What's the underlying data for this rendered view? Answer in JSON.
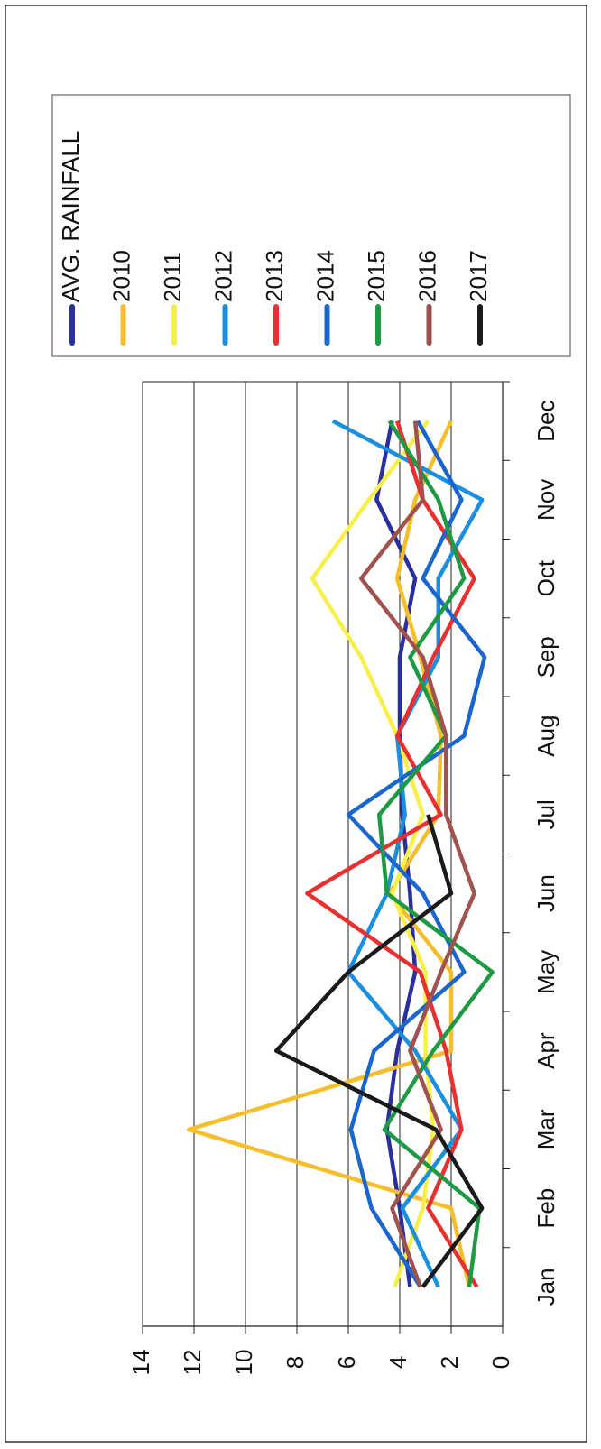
{
  "chart_data": {
    "type": "line",
    "categories": [
      "Jan",
      "Feb",
      "Mar",
      "Apr",
      "May",
      "Jun",
      "Jul",
      "Aug",
      "Sep",
      "Oct",
      "Nov",
      "Dec"
    ],
    "ylim": [
      0,
      14
    ],
    "yticks": [
      0,
      2,
      4,
      6,
      8,
      10,
      12,
      14
    ],
    "grid": true,
    "series": [
      {
        "name": "AVG. RAINFALL",
        "color": "#2b2f9e",
        "values": [
          3.6,
          4.0,
          4.5,
          4.1,
          3.4,
          3.6,
          3.9,
          4.0,
          4.0,
          3.4,
          4.9,
          4.3
        ]
      },
      {
        "name": "2010",
        "color": "#f5be2a",
        "values": [
          1.3,
          2.0,
          12.2,
          2.0,
          2.0,
          4.4,
          2.5,
          2.4,
          3.2,
          4.1,
          3.4,
          2.0
        ]
      },
      {
        "name": "2011",
        "color": "#f7ef4a",
        "values": [
          4.2,
          3.1,
          2.7,
          3.0,
          3.0,
          4.3,
          3.1,
          4.1,
          5.5,
          7.4,
          5.2,
          2.9
        ]
      },
      {
        "name": "2012",
        "color": "#1a8fe0",
        "values": [
          2.5,
          3.9,
          1.6,
          3.4,
          6.0,
          4.5,
          3.8,
          4.1,
          2.5,
          2.5,
          0.8,
          6.6
        ]
      },
      {
        "name": "2013",
        "color": "#e83030",
        "values": [
          1.0,
          2.9,
          1.6,
          2.2,
          3.2,
          7.6,
          2.4,
          4.1,
          2.7,
          1.1,
          3.1,
          4.1
        ]
      },
      {
        "name": "2014",
        "color": "#1a66cc",
        "values": [
          3.2,
          5.1,
          5.9,
          5.0,
          1.5,
          3.1,
          6.0,
          1.5,
          0.7,
          3.1,
          1.6,
          3.3
        ]
      },
      {
        "name": "2015",
        "color": "#1e9a44",
        "values": [
          1.3,
          0.9,
          4.6,
          2.7,
          0.4,
          4.5,
          4.8,
          2.2,
          3.6,
          1.5,
          2.5,
          4.4
        ]
      },
      {
        "name": "2016",
        "color": "#a0524f",
        "values": [
          3.2,
          4.3,
          2.4,
          3.6,
          2.4,
          1.1,
          2.2,
          2.2,
          3.1,
          5.5,
          3.1,
          3.4
        ]
      },
      {
        "name": "2017",
        "color": "#1a1a1a",
        "values": [
          3.1,
          0.8,
          2.6,
          8.8,
          6.0,
          2.0,
          2.9,
          null,
          null,
          null,
          null,
          null
        ]
      }
    ]
  }
}
